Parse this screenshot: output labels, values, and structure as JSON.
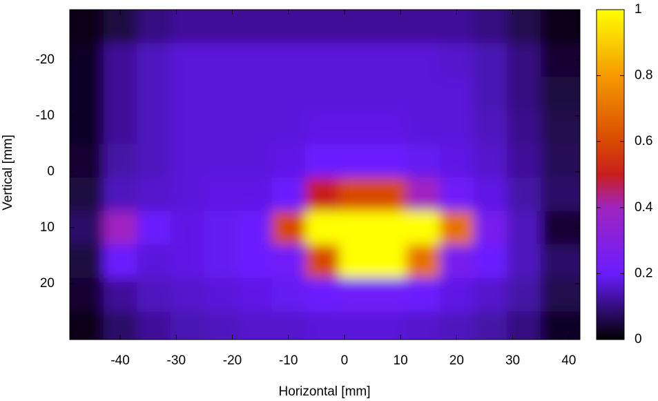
{
  "chart_data": {
    "type": "heatmap",
    "xlabel": "Horizontal [mm]",
    "ylabel": "Vertical [mm]",
    "x": [
      -46,
      -40,
      -34,
      -28,
      -22,
      -16,
      -10,
      -4,
      2,
      8,
      14,
      20,
      26,
      32,
      38
    ],
    "y": [
      -26,
      -20,
      -14,
      -8,
      -2,
      4,
      10,
      16,
      22,
      28
    ],
    "z": [
      [
        0.02,
        0.05,
        0.1,
        0.12,
        0.12,
        0.12,
        0.12,
        0.12,
        0.12,
        0.12,
        0.12,
        0.12,
        0.1,
        0.06,
        0.02
      ],
      [
        0.03,
        0.12,
        0.15,
        0.17,
        0.17,
        0.17,
        0.17,
        0.17,
        0.17,
        0.17,
        0.17,
        0.16,
        0.14,
        0.1,
        0.04
      ],
      [
        0.03,
        0.12,
        0.15,
        0.17,
        0.17,
        0.17,
        0.17,
        0.17,
        0.17,
        0.17,
        0.17,
        0.17,
        0.14,
        0.1,
        0.05
      ],
      [
        0.03,
        0.12,
        0.15,
        0.17,
        0.17,
        0.17,
        0.17,
        0.18,
        0.18,
        0.18,
        0.17,
        0.17,
        0.15,
        0.11,
        0.06
      ],
      [
        0.04,
        0.13,
        0.15,
        0.17,
        0.17,
        0.17,
        0.18,
        0.2,
        0.2,
        0.2,
        0.19,
        0.18,
        0.16,
        0.12,
        0.07
      ],
      [
        0.05,
        0.15,
        0.16,
        0.17,
        0.18,
        0.18,
        0.2,
        0.5,
        0.6,
        0.6,
        0.4,
        0.22,
        0.18,
        0.13,
        0.08
      ],
      [
        0.08,
        0.4,
        0.2,
        0.18,
        0.19,
        0.2,
        0.6,
        1,
        1,
        1,
        1,
        0.7,
        0.25,
        0.15,
        0.04
      ],
      [
        0.05,
        0.2,
        0.17,
        0.18,
        0.19,
        0.2,
        0.22,
        0.6,
        1,
        1,
        0.7,
        0.25,
        0.2,
        0.15,
        0.08
      ],
      [
        0.04,
        0.12,
        0.15,
        0.16,
        0.17,
        0.18,
        0.19,
        0.2,
        0.22,
        0.22,
        0.2,
        0.18,
        0.16,
        0.13,
        0.06
      ],
      [
        0.02,
        0.08,
        0.12,
        0.14,
        0.15,
        0.16,
        0.16,
        0.17,
        0.17,
        0.17,
        0.16,
        0.15,
        0.13,
        0.1,
        0.03
      ]
    ],
    "xlim": [
      -49,
      42
    ],
    "ylim": [
      -29,
      30
    ],
    "y_reversed": true,
    "xticks": [
      -40,
      -30,
      -20,
      -10,
      0,
      10,
      20,
      30,
      40
    ],
    "yticks": [
      -20,
      -10,
      0,
      10,
      20
    ],
    "clim": [
      0,
      1
    ],
    "cticks": [
      0,
      0.2,
      0.4,
      0.6,
      0.8,
      1
    ],
    "colormap": [
      {
        "value": 0,
        "color": "#000000"
      },
      {
        "value": 0.2,
        "color": "#6a1cff"
      },
      {
        "value": 0.4,
        "color": "#a024c0"
      },
      {
        "value": 0.5,
        "color": "#c81e1e"
      },
      {
        "value": 0.6,
        "color": "#d84a00"
      },
      {
        "value": 0.8,
        "color": "#f59a00"
      },
      {
        "value": 1,
        "color": "#ffff00"
      }
    ]
  }
}
